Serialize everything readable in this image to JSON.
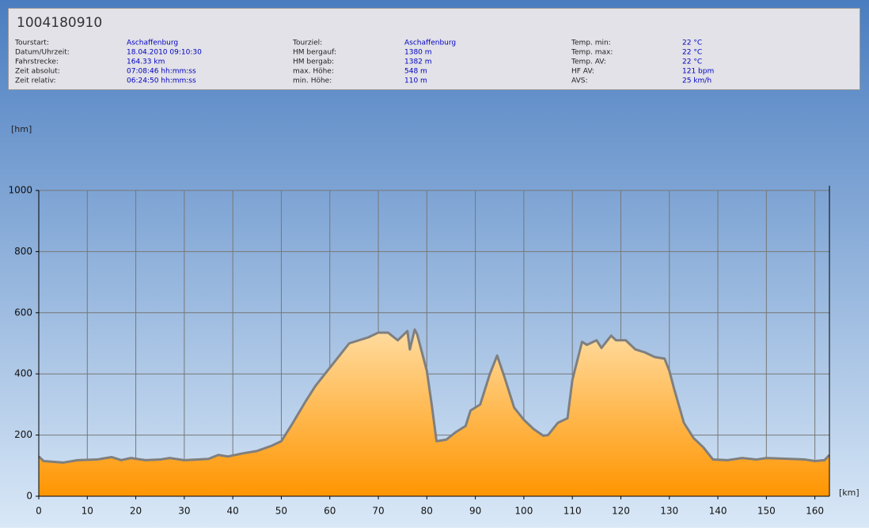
{
  "header": {
    "title": "1004180910",
    "columns": [
      {
        "rows": [
          {
            "label": "Tourstart:",
            "value": "Aschaffenburg"
          },
          {
            "label": "Datum/Uhrzeit:",
            "value": "18.04.2010 09:10:30"
          },
          {
            "label": "Fahrstrecke:",
            "value": "164.33 km"
          },
          {
            "label": "Zeit absolut:",
            "value": "07:08:46 hh:mm:ss"
          },
          {
            "label": "Zeit relativ:",
            "value": "06:24:50 hh:mm:ss"
          }
        ]
      },
      {
        "rows": [
          {
            "label": "Tourziel:",
            "value": "Aschaffenburg"
          },
          {
            "label": "HM bergauf:",
            "value": "1380 m"
          },
          {
            "label": "HM bergab:",
            "value": "1382 m"
          },
          {
            "label": "max. Höhe:",
            "value": "548 m"
          },
          {
            "label": "min. Höhe:",
            "value": "110 m"
          }
        ]
      },
      {
        "rows": [
          {
            "label": "Temp. min:",
            "value": "22 °C"
          },
          {
            "label": "Temp. max:",
            "value": "22 °C"
          },
          {
            "label": "Temp. AV:",
            "value": "22 °C"
          },
          {
            "label": "HF AV:",
            "value": "121 bpm"
          },
          {
            "label": "AVS:",
            "value": "25 km/h"
          }
        ]
      }
    ]
  },
  "chart_data": {
    "type": "area",
    "y_label": "[hm]",
    "x_label": "[km]",
    "x": [
      0,
      1,
      5,
      8,
      12,
      15,
      17,
      19,
      22,
      25,
      27,
      30,
      35,
      37,
      39,
      42,
      45,
      48,
      50,
      52,
      55,
      57,
      60,
      62,
      64,
      66,
      68,
      70,
      72,
      74,
      76,
      76.5,
      77.5,
      78,
      80,
      81,
      82,
      84,
      86,
      88,
      89,
      91,
      93,
      94.5,
      96,
      98,
      100,
      102,
      104,
      105,
      107,
      109,
      110,
      112,
      113,
      115,
      116,
      118,
      119,
      121,
      123,
      125,
      127,
      129,
      130,
      131,
      133,
      135,
      137,
      139,
      142,
      145,
      148,
      150,
      155,
      158,
      160,
      162,
      163
    ],
    "y": [
      130,
      115,
      110,
      118,
      120,
      128,
      118,
      125,
      118,
      120,
      125,
      118,
      122,
      135,
      130,
      140,
      148,
      165,
      180,
      230,
      310,
      360,
      420,
      460,
      500,
      510,
      520,
      535,
      535,
      510,
      540,
      480,
      545,
      530,
      410,
      300,
      180,
      185,
      210,
      230,
      280,
      300,
      400,
      460,
      390,
      290,
      250,
      220,
      198,
      200,
      240,
      255,
      380,
      505,
      495,
      510,
      485,
      525,
      510,
      510,
      480,
      470,
      455,
      450,
      410,
      350,
      240,
      190,
      160,
      120,
      118,
      125,
      120,
      125,
      122,
      120,
      115,
      118,
      135
    ],
    "xlim": [
      0,
      163
    ],
    "ylim": [
      0,
      1000
    ],
    "xticks": [
      0,
      10,
      20,
      30,
      40,
      50,
      60,
      70,
      80,
      90,
      100,
      110,
      120,
      130,
      140,
      150,
      160
    ],
    "yticks": [
      0,
      200,
      400,
      600,
      800,
      1000
    ],
    "grid": true,
    "color": "#ff9a00"
  }
}
